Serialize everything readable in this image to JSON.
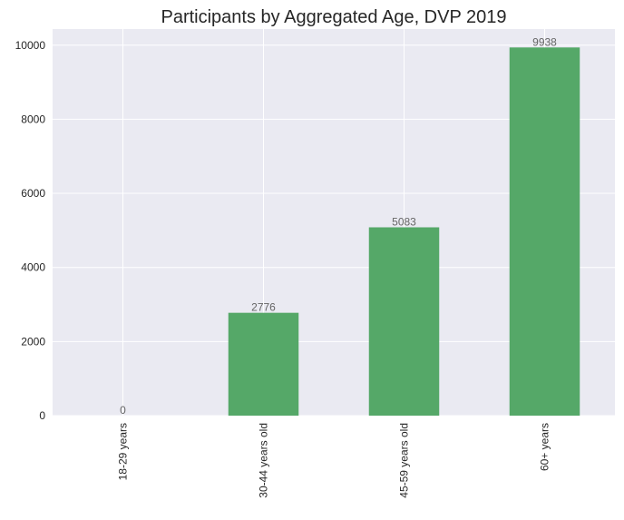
{
  "chart_data": {
    "type": "bar",
    "title": "Participants by Aggregated Age, DVP 2019",
    "xlabel": "",
    "ylabel": "",
    "categories": [
      "18-29 years",
      "30-44 years old",
      "45-59 years old",
      "60+ years"
    ],
    "values": [
      0,
      2776,
      5083,
      9938
    ],
    "value_labels": [
      "0",
      "2776",
      "5083",
      "9938"
    ],
    "ylim": [
      0,
      10435
    ],
    "yticks": [
      0,
      2000,
      4000,
      6000,
      8000,
      10000
    ],
    "ytick_labels": [
      "0",
      "2000",
      "4000",
      "6000",
      "8000",
      "10000"
    ],
    "grid": true,
    "legend": "none",
    "colors": {
      "bar": "#55a868",
      "plot_background": "#eaeaf2",
      "grid": "#ffffff",
      "text": "#262626",
      "value_label": "#666666"
    }
  }
}
